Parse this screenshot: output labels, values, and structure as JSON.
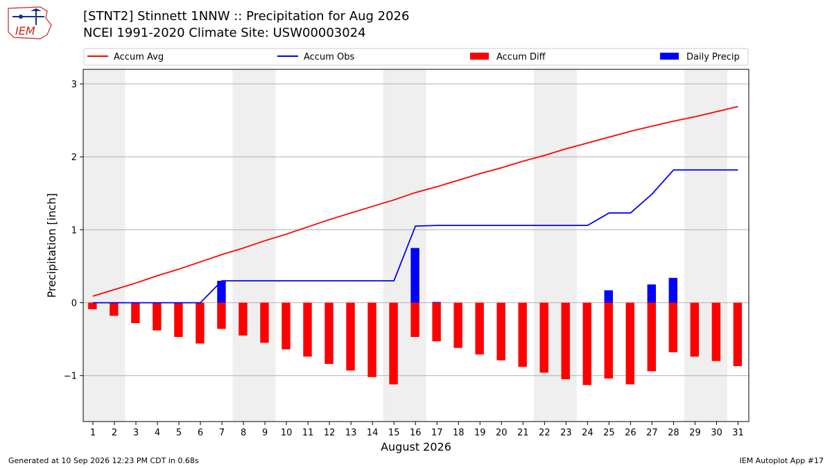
{
  "header": {
    "title": "[STNT2] Stinnett 1NNW :: Precipitation for Aug 2026",
    "subtitle": "NCEI 1991-2020 Climate Site: USW00003024"
  },
  "footer": {
    "generated": "Generated at 10 Sep 2026 12:23 PM CDT in 0.68s",
    "app": "IEM Autoplot App #17"
  },
  "logo": {
    "text": "IEM"
  },
  "chart_data": {
    "type": "bar",
    "xlabel": "August 2026",
    "ylabel": "Precipitation [inch]",
    "ylim": [
      -1.63,
      3.2
    ],
    "yticks": [
      -1,
      0,
      1,
      2,
      3
    ],
    "ytick_labels": [
      "−1",
      "0",
      "1",
      "2",
      "3"
    ],
    "grid": true,
    "legend_position": "top",
    "weekend_shading": [
      [
        1,
        2
      ],
      [
        8,
        9
      ],
      [
        15,
        16
      ],
      [
        22,
        23
      ],
      [
        29,
        30
      ]
    ],
    "x": [
      1,
      2,
      3,
      4,
      5,
      6,
      7,
      8,
      9,
      10,
      11,
      12,
      13,
      14,
      15,
      16,
      17,
      18,
      19,
      20,
      21,
      22,
      23,
      24,
      25,
      26,
      27,
      28,
      29,
      30,
      31
    ],
    "series": [
      {
        "name": "Accum Avg",
        "kind": "line",
        "color": "#ff0000",
        "values": [
          0.09,
          0.18,
          0.27,
          0.37,
          0.46,
          0.56,
          0.66,
          0.75,
          0.85,
          0.94,
          1.04,
          1.14,
          1.23,
          1.32,
          1.41,
          1.51,
          1.59,
          1.68,
          1.77,
          1.85,
          1.94,
          2.02,
          2.11,
          2.19,
          2.27,
          2.35,
          2.42,
          2.49,
          2.55,
          2.62,
          2.69
        ]
      },
      {
        "name": "Accum Obs",
        "kind": "line",
        "color": "#0000ff",
        "values": [
          0.0,
          0.0,
          0.0,
          0.0,
          0.0,
          0.0,
          0.3,
          0.3,
          0.3,
          0.3,
          0.3,
          0.3,
          0.3,
          0.3,
          0.3,
          1.05,
          1.06,
          1.06,
          1.06,
          1.06,
          1.06,
          1.06,
          1.06,
          1.06,
          1.23,
          1.23,
          1.49,
          1.82,
          1.82,
          1.82,
          1.82
        ]
      },
      {
        "name": "Accum Diff",
        "kind": "bar",
        "color": "#ff0000",
        "values": [
          -0.09,
          -0.18,
          -0.28,
          -0.38,
          -0.47,
          -0.56,
          -0.36,
          -0.45,
          -0.55,
          -0.64,
          -0.74,
          -0.84,
          -0.93,
          -1.02,
          -1.12,
          -0.47,
          -0.53,
          -0.62,
          -0.71,
          -0.79,
          -0.88,
          -0.96,
          -1.05,
          -1.13,
          -1.04,
          -1.12,
          -0.94,
          -0.68,
          -0.74,
          -0.8,
          -0.87
        ]
      },
      {
        "name": "Daily Precip",
        "kind": "bar",
        "color": "#0000ff",
        "values": [
          0,
          0,
          0,
          0,
          0,
          0,
          0.3,
          0,
          0,
          0,
          0,
          0,
          0,
          0,
          0,
          0.75,
          0.01,
          0,
          0,
          0,
          0,
          0,
          0,
          0,
          0.17,
          0,
          0.25,
          0.34,
          0,
          0,
          0
        ]
      }
    ]
  }
}
